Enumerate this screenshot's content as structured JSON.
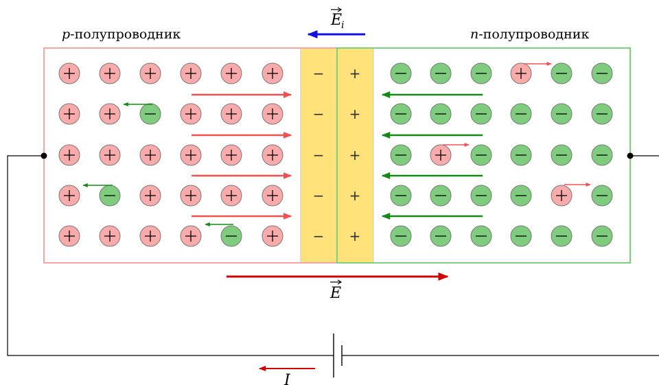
{
  "labels": {
    "p_region": "p-полупроводник",
    "n_region": "n-полупроводник",
    "internal_field": "E",
    "internal_field_sub": "i",
    "external_field": "E",
    "current": "I"
  },
  "glyphs": {
    "plus": "+",
    "minus": "−"
  },
  "colors": {
    "p_border": "#f4a6a6",
    "n_border": "#7ccf7c",
    "depletion_fill": "#ffe27a",
    "hole_fill": "#f9aaaa",
    "electron_fill": "#7fcc7f",
    "red_arrow": "#f05050",
    "green_arrow": "#138a13",
    "blue_arrow": "#1010e6",
    "dark_red_arrow": "#d00000",
    "wire": "#000000"
  },
  "p_region_grid": [
    [
      "+",
      "+",
      "+",
      "+",
      "+",
      "+"
    ],
    [
      "+",
      "+",
      "-",
      "+",
      "+",
      "+"
    ],
    [
      "+",
      "+",
      "+",
      "+",
      "+",
      "+"
    ],
    [
      "+",
      "-",
      "+",
      "+",
      "+",
      "+"
    ],
    [
      "+",
      "+",
      "+",
      "+",
      "-",
      "+"
    ]
  ],
  "n_region_grid": [
    [
      "-",
      "-",
      "-",
      "+",
      "-",
      "-"
    ],
    [
      "-",
      "-",
      "-",
      "-",
      "-",
      "-"
    ],
    [
      "-",
      "+",
      "-",
      "-",
      "-",
      "-"
    ],
    [
      "-",
      "-",
      "-",
      "-",
      "+",
      "-"
    ],
    [
      "-",
      "-",
      "-",
      "-",
      "-",
      "-"
    ]
  ],
  "depletion_left_signs": [
    "-",
    "-",
    "-",
    "-",
    "-"
  ],
  "depletion_right_signs": [
    "+",
    "+",
    "+",
    "+",
    "+"
  ]
}
